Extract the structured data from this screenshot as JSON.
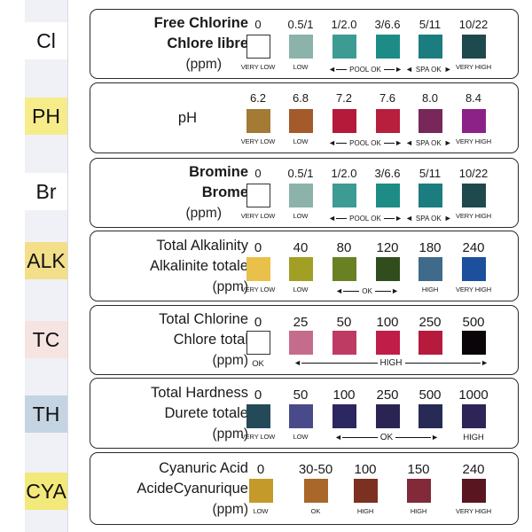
{
  "tabs": [
    {
      "label": "Cl",
      "color": "#ffffff"
    },
    {
      "label": "PH",
      "color": "#f6ec8a"
    },
    {
      "label": "Br",
      "color": "#ffffff"
    },
    {
      "label": "ALK",
      "color": "#f3de8a"
    },
    {
      "label": "TC",
      "color": "#f6e4e2"
    },
    {
      "label": "TH",
      "color": "#c4d4e2"
    },
    {
      "label": "CYA",
      "color": "#f3e87a"
    }
  ],
  "panels": [
    {
      "title": [
        "Free Chlorine",
        "Chlore libre"
      ],
      "unit": "(ppm)",
      "bold": true,
      "values": [
        "0",
        "0.5/1",
        "1/2.0",
        "3/6.6",
        "5/11",
        "10/22"
      ],
      "colors": [
        "#ffffff",
        "#8bb3aa",
        "#3d9b93",
        "#1d8c86",
        "#1b7d7f",
        "#1e4a4d"
      ],
      "labels": [
        "VERY LOW",
        "LOW",
        "",
        "",
        "",
        "VERY HIGH"
      ],
      "arrows": [
        {
          "text": "POOL OK"
        },
        {
          "text": "SPA OK"
        }
      ]
    },
    {
      "title": [
        "pH"
      ],
      "unit": "",
      "bold": false,
      "values": [
        "6.2",
        "6.8",
        "7.2",
        "7.6",
        "8.0",
        "8.4"
      ],
      "colors": [
        "#a47a35",
        "#a45a2a",
        "#b51a3a",
        "#b81f3c",
        "#77275a",
        "#8c2288"
      ],
      "labels": [
        "VERY LOW",
        "LOW",
        "",
        "",
        "",
        "VERY HIGH"
      ],
      "arrows": [
        {
          "text": "POOL OK"
        },
        {
          "text": "SPA OK"
        }
      ]
    },
    {
      "title": [
        "Bromine",
        "Brome"
      ],
      "unit": "(ppm)",
      "bold": true,
      "values": [
        "0",
        "0.5/1",
        "1/2.0",
        "3/6.6",
        "5/11",
        "10/22"
      ],
      "colors": [
        "#ffffff",
        "#8bb3aa",
        "#3d9b93",
        "#1d8c86",
        "#1b7d7f",
        "#1e4a4d"
      ],
      "labels": [
        "VERY LOW",
        "LOW",
        "",
        "",
        "",
        "VERY HIGH"
      ],
      "arrows": [
        {
          "text": "POOL OK"
        },
        {
          "text": "SPA OK"
        }
      ]
    },
    {
      "title": [
        "Total Alkalinity",
        "Alkalinite totale"
      ],
      "unit": "(ppm)",
      "bold": false,
      "values": [
        "0",
        "40",
        "80",
        "120",
        "180",
        "240"
      ],
      "colors": [
        "#e9c049",
        "#a2a024",
        "#6a8123",
        "#314d1d",
        "#3f6a8a",
        "#1c4f9c"
      ],
      "labels": [
        "VERY LOW",
        "LOW",
        "",
        "",
        "HIGH",
        "VERY HIGH"
      ],
      "arrows": [
        {
          "text": "OK"
        }
      ]
    },
    {
      "title": [
        "Total Chlorine",
        "Chlore total"
      ],
      "unit": "(ppm)",
      "bold": false,
      "values": [
        "0",
        "25",
        "50",
        "100",
        "250",
        "500"
      ],
      "colors": [
        "#ffffff",
        "#c56c8c",
        "#be3b64",
        "#c01d48",
        "#b61b3d",
        "#0a0508"
      ],
      "labels": [
        "OK",
        "",
        "",
        "",
        "",
        ""
      ],
      "arrows": [
        {
          "text": "HIGH"
        }
      ]
    },
    {
      "title": [
        "Total Hardness",
        "Durete totale"
      ],
      "unit": "(ppm)",
      "bold": false,
      "values": [
        "0",
        "50",
        "100",
        "250",
        "500",
        "1000"
      ],
      "colors": [
        "#244a5a",
        "#494a8a",
        "#2c2760",
        "#2a2452",
        "#262a55",
        "#2e2458"
      ],
      "labels": [
        "VERY LOW",
        "LOW",
        "",
        "",
        "",
        "HIGH"
      ],
      "arrows": [
        {
          "text": "OK"
        }
      ]
    },
    {
      "title": [
        "Cyanuric Acid",
        "AcideCyanurique"
      ],
      "unit": "(ppm)",
      "bold": false,
      "values": [
        "0",
        "30-50",
        "100",
        "150",
        "240"
      ],
      "colors": [
        "#c49a2a",
        "#a96729",
        "#7b3022",
        "#82293a",
        "#5a1620"
      ],
      "labels": [
        "LOW",
        "OK",
        "HIGH",
        "HIGH",
        "VERY HIGH"
      ],
      "arrows": []
    }
  ]
}
